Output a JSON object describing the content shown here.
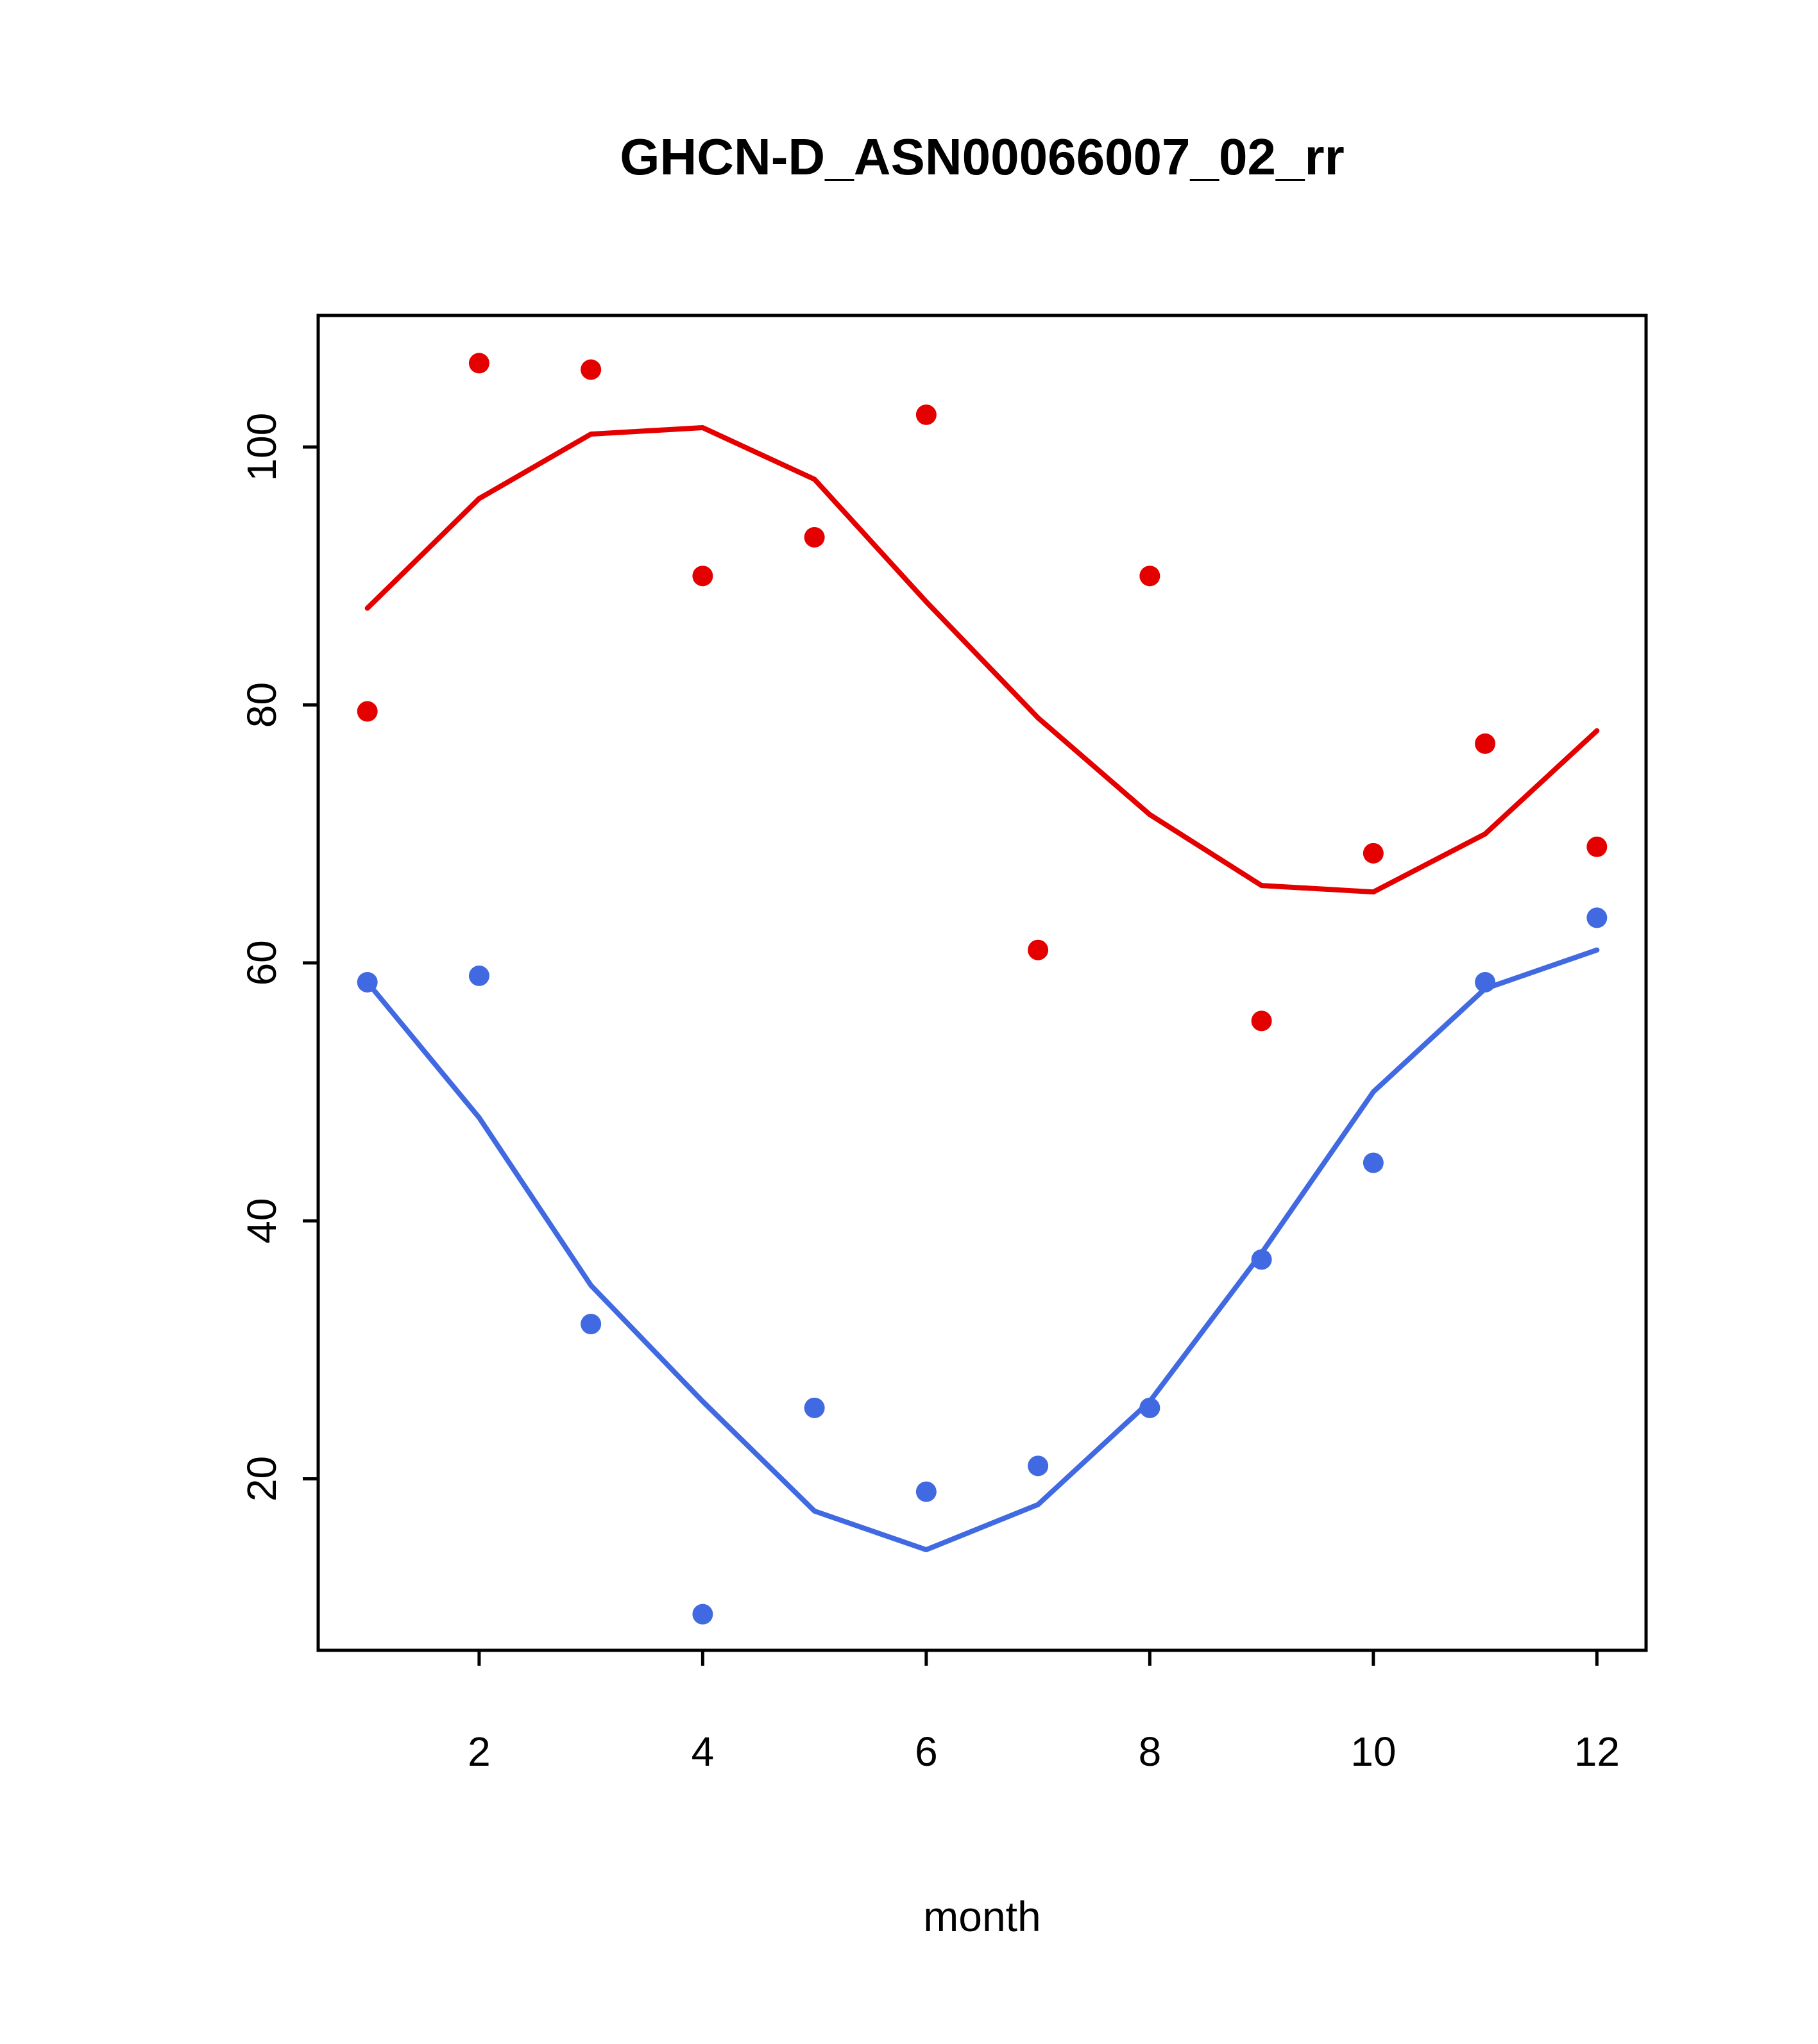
{
  "page": {
    "background": "#ffffff",
    "axis_color": "#000000"
  },
  "chart_data": {
    "type": "scatter",
    "title": "GHCN-D_ASN00066007_02_rr",
    "xlabel": "month",
    "ylabel": "",
    "x": [
      1,
      2,
      3,
      4,
      5,
      6,
      7,
      8,
      9,
      10,
      11,
      12
    ],
    "xlim": [
      0.56,
      12.44
    ],
    "ylim": [
      6.7,
      110.2
    ],
    "xticks": [
      2,
      4,
      6,
      8,
      10,
      12
    ],
    "yticks": [
      20,
      40,
      60,
      80,
      100
    ],
    "grid": false,
    "legend": "none",
    "series": [
      {
        "name": "upper-points",
        "type": "points",
        "color": "#e50000",
        "values": [
          79.5,
          106.5,
          106,
          90,
          93,
          102.5,
          61,
          90,
          55.5,
          68.5,
          77,
          69
        ]
      },
      {
        "name": "upper-smooth-line",
        "type": "line",
        "color": "#e50000",
        "values": [
          87.5,
          96,
          101,
          101.5,
          97.5,
          88,
          79,
          71.5,
          66,
          65.5,
          70,
          78
        ]
      },
      {
        "name": "lower-points",
        "type": "points",
        "color": "#4169e1",
        "values": [
          58.5,
          59,
          32,
          9.5,
          25.5,
          19,
          21,
          25.5,
          37,
          44.5,
          58.5,
          63.5
        ]
      },
      {
        "name": "lower-smooth-line",
        "type": "line",
        "color": "#4169e1",
        "values": [
          58.5,
          48,
          35,
          26,
          17.5,
          14.5,
          18,
          26,
          37.5,
          50,
          58,
          61
        ]
      }
    ]
  }
}
